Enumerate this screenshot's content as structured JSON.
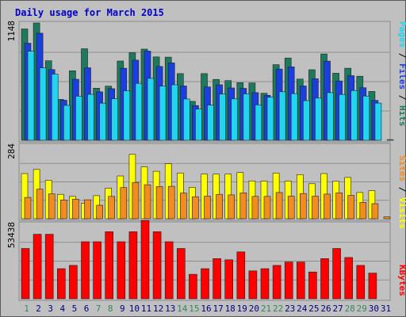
{
  "chart_data": {
    "type": "bar",
    "title": "Daily usage for March 2015",
    "categories": [
      "1",
      "2",
      "3",
      "4",
      "5",
      "6",
      "7",
      "8",
      "9",
      "10",
      "11",
      "12",
      "13",
      "14",
      "15",
      "16",
      "17",
      "18",
      "19",
      "20",
      "21",
      "22",
      "23",
      "24",
      "25",
      "26",
      "27",
      "28",
      "29",
      "30",
      "31"
    ],
    "weekend_days": [
      "1",
      "7",
      "8",
      "14",
      "15",
      "21",
      "22",
      "28",
      "29"
    ],
    "panels": [
      {
        "id": "hits",
        "ymax_label": "1148",
        "ylim": [
          0,
          1148
        ],
        "legend": [
          "Pages",
          "Files",
          "Hits"
        ],
        "series": [
          {
            "name": "Hits",
            "color": "#1e7a5f",
            "values": [
              1090,
              1148,
              778,
              400,
              680,
              896,
              510,
              530,
              776,
              857,
              892,
              816,
              814,
              652,
              381,
              652,
              596,
              584,
              564,
              561,
              460,
              740,
              805,
              599,
              690,
              845,
              656,
              705,
              627,
              478,
              0
            ]
          },
          {
            "name": "Files",
            "color": "#1a3fdc",
            "values": [
              950,
              1048,
              692,
              392,
              597,
              710,
              474,
              505,
              705,
              784,
              873,
              722,
              757,
              531,
              340,
              522,
              543,
              512,
              508,
              466,
              440,
              697,
              718,
              531,
              602,
              775,
              580,
              632,
              514,
              390,
              0
            ]
          },
          {
            "name": "Pages",
            "color": "#21d4f0",
            "values": [
              871,
              708,
              648,
              341,
              432,
              450,
              363,
              406,
              485,
              557,
              606,
              530,
              543,
              404,
              305,
              344,
              452,
              405,
              454,
              346,
              422,
              475,
              457,
              388,
              413,
              466,
              448,
              487,
              433,
              364,
              7
            ]
          }
        ]
      },
      {
        "id": "visits",
        "ymax_label": "284",
        "ylim": [
          0,
          284
        ],
        "legend": [
          "Sites",
          "Visits"
        ],
        "series": [
          {
            "name": "Visits",
            "color": "#ffff00",
            "values": [
              174,
              190,
              148,
              94,
              86,
              60,
              89,
              118,
              165,
              248,
              200,
              183,
              212,
              176,
              121,
              172,
              172,
              172,
              178,
              145,
              145,
              176,
              145,
              170,
              135,
              174,
              144,
              159,
              101,
              108,
              0
            ]
          },
          {
            "name": "Sites",
            "color": "#f28c1e",
            "values": [
              82,
              114,
              96,
              72,
              75,
              73,
              52,
              86,
              120,
              140,
              131,
              124,
              125,
              99,
              85,
              87,
              94,
              92,
              100,
              86,
              86,
              101,
              87,
              97,
              87,
              95,
              100,
              90,
              63,
              58,
              7
            ]
          }
        ]
      },
      {
        "id": "kbytes",
        "ymax_label": "53438",
        "ylim": [
          0,
          53438
        ],
        "legend": [
          "KBytes"
        ],
        "series": [
          {
            "name": "KBytes",
            "color": "#ff0000",
            "values": [
              35700,
              45800,
              45800,
              21400,
              23700,
              40500,
              40500,
              47600,
              40500,
              47600,
              55500,
              47600,
              40500,
              35700,
              17400,
              21400,
              28500,
              27700,
              33300,
              19800,
              21400,
              23700,
              26100,
              26100,
              19000,
              28500,
              35700,
              29300,
              23700,
              18200,
              0
            ]
          }
        ]
      }
    ]
  }
}
